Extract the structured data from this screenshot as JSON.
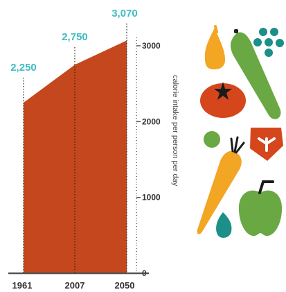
{
  "chart_data": {
    "type": "area",
    "x": [
      "1961",
      "2007",
      "2050"
    ],
    "values": [
      2250,
      2750,
      3070
    ],
    "value_labels": [
      "2,250",
      "2,750",
      "3,070"
    ],
    "ylabel": "calorie intake per person per day",
    "yticks": [
      0,
      1000,
      2000,
      3000
    ],
    "ytick_labels": [
      "0",
      "1000",
      "2000",
      "3000"
    ],
    "ylim": [
      0,
      3000
    ],
    "y_axis_side": "right",
    "grid": false,
    "colors": {
      "area": "#c5471d",
      "value_label": "#3fbcc1",
      "axis": "#555555",
      "dashed_marker": "#222222"
    }
  },
  "decoration": {
    "icons": [
      "pear-icon",
      "cucumber-icon",
      "grapes-icon",
      "tomato-icon",
      "pea-icon",
      "steak-icon",
      "carrot-icon",
      "avocado-icon",
      "apple-icon"
    ]
  }
}
